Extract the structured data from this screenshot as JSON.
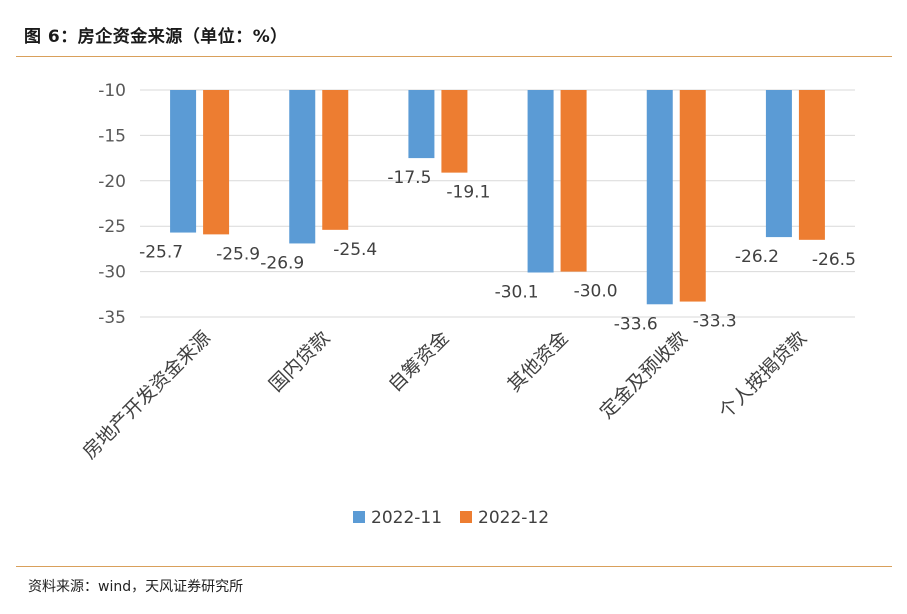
{
  "page": {
    "title": "图 6：房企资金来源（单位：%）",
    "source": "资料来源：wind，天风证券研究所"
  },
  "colors": {
    "series_1": "#5b9bd5",
    "series_2": "#ed7d31",
    "rule": "#d9a05b",
    "gridline": "#d9d9d9",
    "text": "#404040"
  },
  "chart_data": {
    "type": "bar",
    "title": "",
    "xlabel": "",
    "ylabel": "",
    "ylim": [
      -35,
      -10
    ],
    "yticks": [
      -10,
      -15,
      -20,
      -25,
      -30,
      -35
    ],
    "ytick_labels": [
      "-10",
      "-15",
      "-20",
      "-25",
      "-30",
      "-35"
    ],
    "grid": "horizontal",
    "legend_position": "bottom",
    "categories": [
      "房地产开发资金来源",
      "国内贷款",
      "自筹资金",
      "其他资金",
      "定金及预收款",
      "个人按揭贷款"
    ],
    "series": [
      {
        "name": "2022-11",
        "values": [
          -25.7,
          -26.9,
          -17.5,
          -30.1,
          -33.6,
          -26.2
        ],
        "labels": [
          "-25.7",
          "-26.9",
          "-17.5",
          "-30.1",
          "-33.6",
          "-26.2"
        ]
      },
      {
        "name": "2022-12",
        "values": [
          -25.9,
          -25.4,
          -19.1,
          -30.0,
          -33.3,
          -26.5
        ],
        "labels": [
          "-25.9",
          "-25.4",
          "-19.1",
          "-30.0",
          "-33.3",
          "-26.5"
        ]
      }
    ]
  }
}
